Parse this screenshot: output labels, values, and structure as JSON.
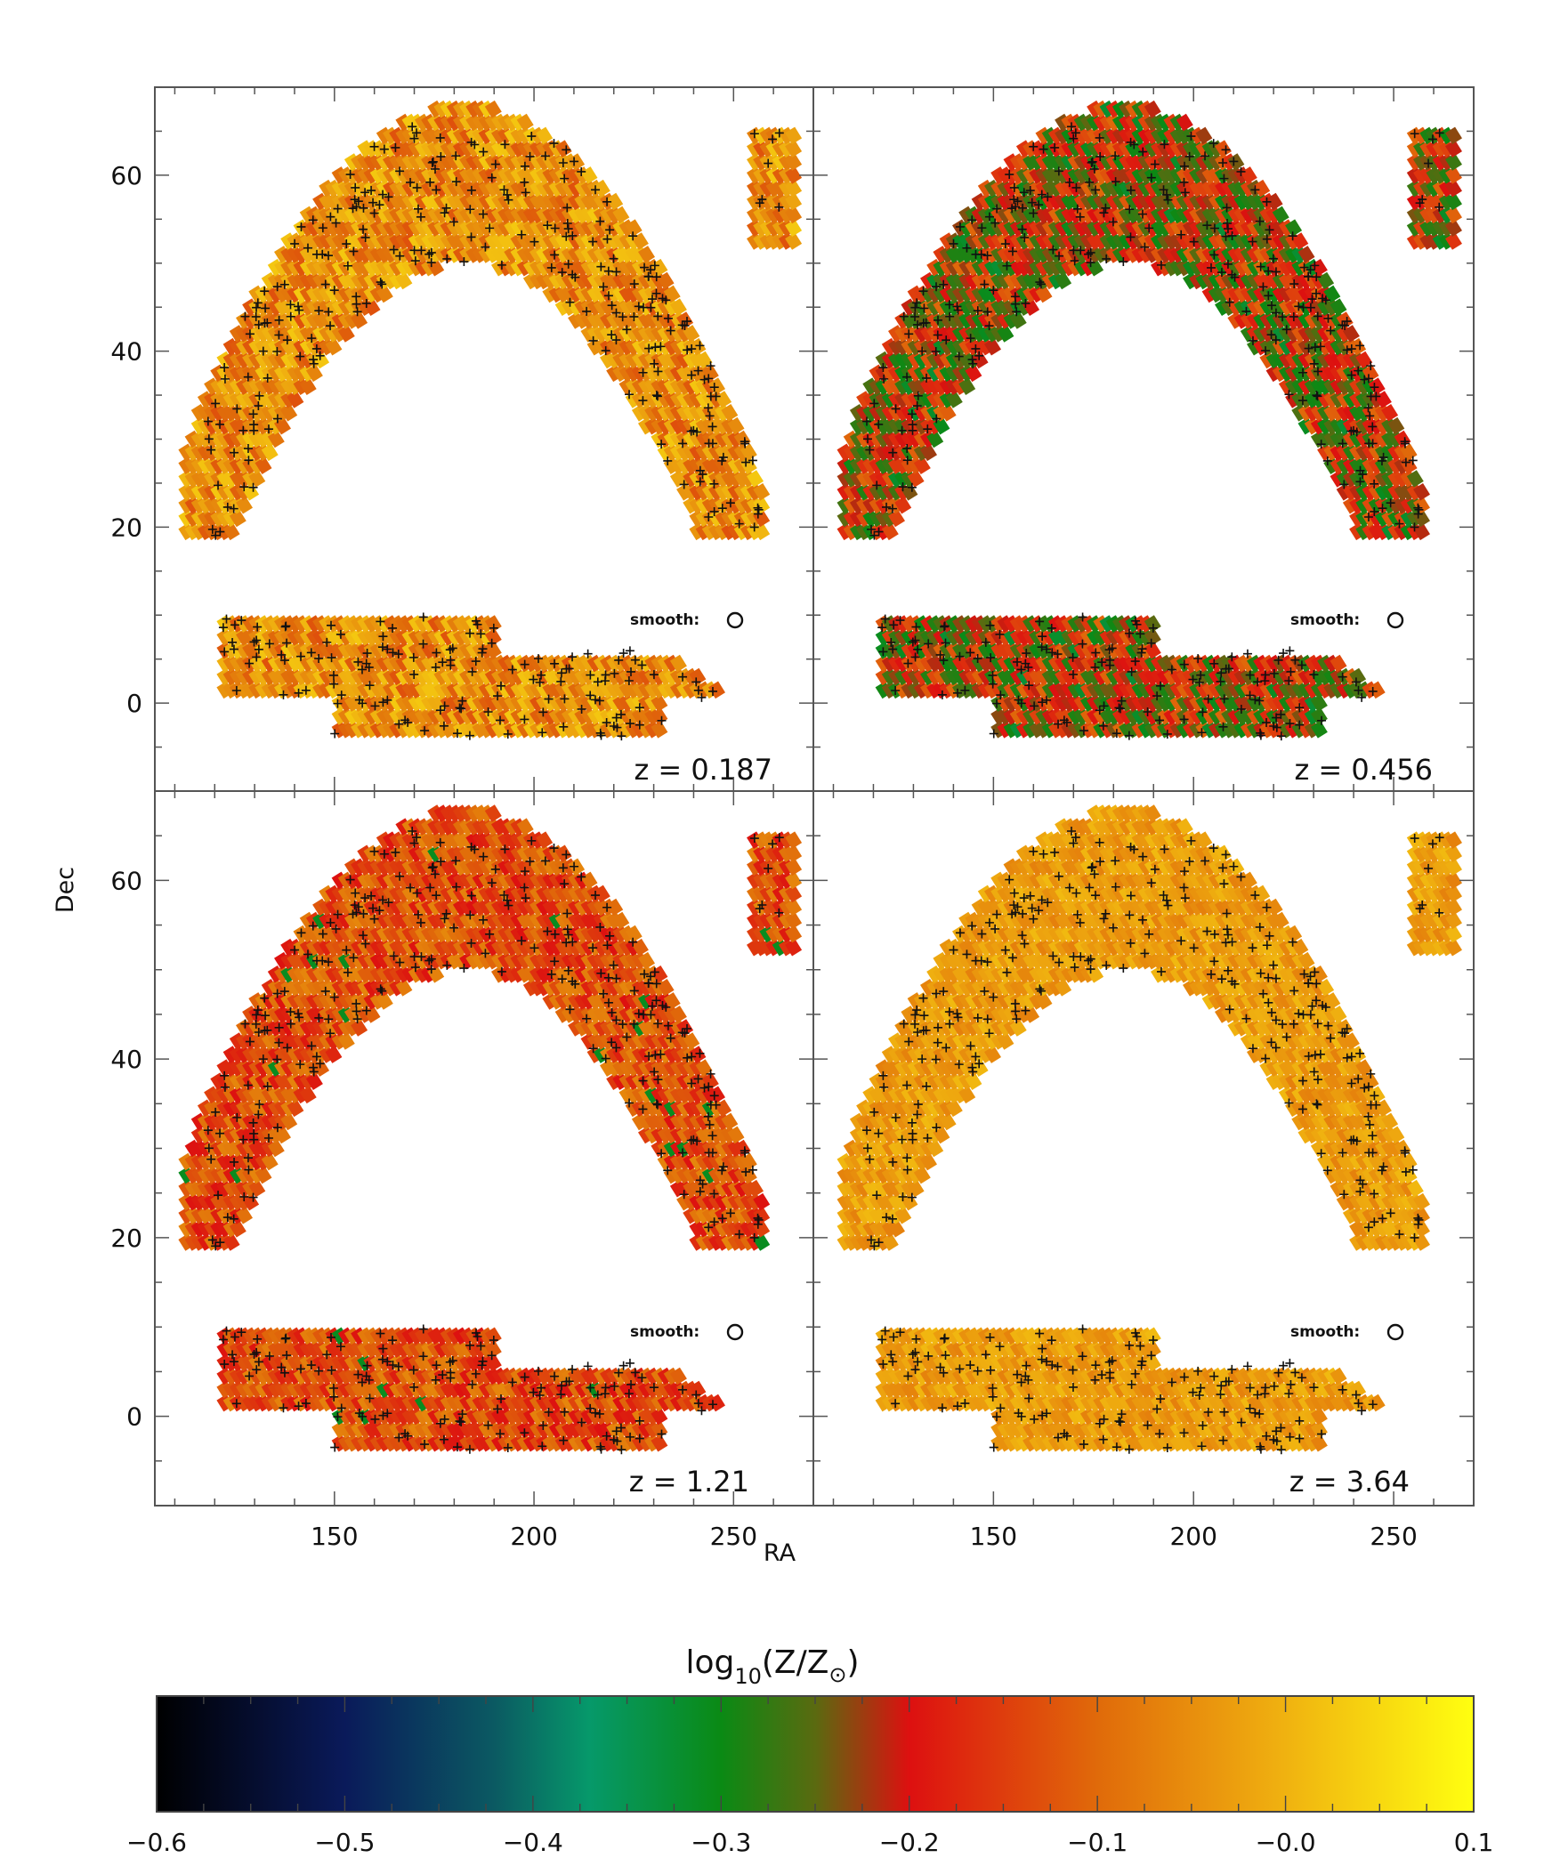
{
  "chart_data": {
    "type": "heatmap",
    "description_axes": {
      "xlabel": "RA",
      "ylabel": "Dec",
      "xlim": [
        105,
        270
      ],
      "ylim": [
        -10,
        70
      ],
      "x_ticks": [
        150,
        200,
        250
      ],
      "x_tick_labels": [
        "150",
        "200",
        "250"
      ],
      "y_ticks": [
        0,
        20,
        40,
        60
      ],
      "y_tick_labels": [
        "0",
        "20",
        "40",
        "60"
      ]
    },
    "panels": [
      {
        "label": "z  =  0.187",
        "smooth_label": "smooth:",
        "mean_log_metallicity": -0.05,
        "spread": 0.08
      },
      {
        "label": "z  =  0.456",
        "smooth_label": "smooth:",
        "mean_log_metallicity": -0.2,
        "spread": 0.1
      },
      {
        "label": "z  =  1.21",
        "smooth_label": "smooth:",
        "mean_log_metallicity": -0.13,
        "spread": 0.07
      },
      {
        "label": "z  =  3.64",
        "smooth_label": "smooth:",
        "mean_log_metallicity": -0.03,
        "spread": 0.04
      }
    ],
    "colorbar": {
      "title_main": "log",
      "title_sub": "10",
      "title_rest": "(Z/Z",
      "title_end": ")",
      "range": [
        -0.6,
        0.1
      ],
      "ticks": [
        -0.6,
        -0.5,
        -0.4,
        -0.3,
        -0.2,
        -0.1,
        0.0,
        0.1
      ],
      "tick_labels": [
        "−0.6",
        "−0.5",
        "−0.4",
        "−0.3",
        "−0.2",
        "−0.1",
        "−0.0",
        "0.1"
      ],
      "color_stops": [
        {
          "value": -0.6,
          "color": "#000000"
        },
        {
          "value": -0.5,
          "color": "#0a1a5a"
        },
        {
          "value": -0.42,
          "color": "#0b5a62"
        },
        {
          "value": -0.37,
          "color": "#06996a"
        },
        {
          "value": -0.3,
          "color": "#0a8a14"
        },
        {
          "value": -0.25,
          "color": "#5a6a10"
        },
        {
          "value": -0.2,
          "color": "#dd1010"
        },
        {
          "value": -0.1,
          "color": "#e06a0a"
        },
        {
          "value": 0.0,
          "color": "#f0b210"
        },
        {
          "value": 0.1,
          "color": "#ffff10"
        }
      ]
    },
    "survey_footprint": {
      "north_arc": {
        "center_ra": 183,
        "peak_dec": 68,
        "inner_peak_dec": 50,
        "ra_min": 112,
        "ra_max": 257
      },
      "north_patch_ra": [
        255,
        265
      ],
      "equatorial_stripe": {
        "ra_min": 122,
        "ra_max": 252,
        "dec_min": -4,
        "dec_max": 10
      }
    }
  }
}
